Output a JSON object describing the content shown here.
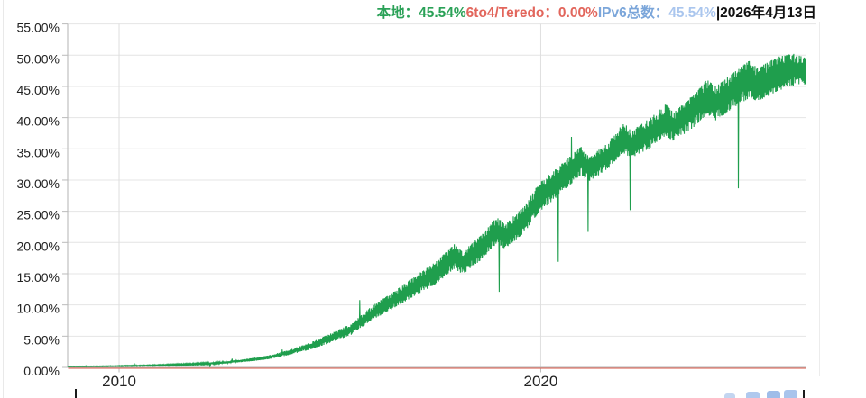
{
  "page": {
    "background": "#ffffff"
  },
  "legend": {
    "items": [
      {
        "label": "本地：",
        "value": "45.54%",
        "label_color": "#2aa157",
        "value_color": "#2aa157"
      },
      {
        "label": "6to4/Teredo：",
        "value": "0.00%",
        "label_color": "#e2665c",
        "value_color": "#e2665c"
      },
      {
        "label": "IPv6总数：",
        "value": "45.54%",
        "label_color": "#7ba6da",
        "value_color": "#aac6ee"
      }
    ],
    "date": "|2026年4月13日",
    "date_color": "#111111"
  },
  "chart_data": {
    "type": "area",
    "description": "IPv6 adoption percentage over time; green band = native IPv6 with weekly oscillation, red flat line = 6to4/Teredo at 0%",
    "grid": true,
    "legend_position": "top-right",
    "x_axis": {
      "range": [
        2008.78,
        2026.28
      ],
      "ticks": [
        2010,
        2020
      ],
      "labels": [
        "2010",
        "2020"
      ]
    },
    "y_axis": {
      "min": 0,
      "max": 55,
      "step": 5,
      "unit": "%",
      "tick_labels": [
        "0.00%",
        "5.00%",
        "10.00%",
        "15.00%",
        "20.00%",
        "25.00%",
        "30.00%",
        "35.00%",
        "40.00%",
        "45.00%",
        "50.00%",
        "55.00%"
      ]
    },
    "series": [
      {
        "name": "本地",
        "color": "#1f9e4d",
        "kind": "weekly-band",
        "envelope_points": [
          [
            2008.78,
            0.1,
            0.18
          ],
          [
            2009.5,
            0.13,
            0.22
          ],
          [
            2010.0,
            0.16,
            0.28
          ],
          [
            2010.5,
            0.2,
            0.34
          ],
          [
            2011.0,
            0.26,
            0.44
          ],
          [
            2011.5,
            0.34,
            0.56
          ],
          [
            2012.0,
            0.46,
            0.72
          ],
          [
            2012.5,
            0.62,
            0.95
          ],
          [
            2013.0,
            0.9,
            1.35
          ],
          [
            2013.5,
            1.25,
            1.85
          ],
          [
            2014.0,
            1.95,
            2.75
          ],
          [
            2014.5,
            2.8,
            3.9
          ],
          [
            2015.0,
            3.9,
            5.4
          ],
          [
            2015.5,
            5.2,
            7.0
          ],
          [
            2016.0,
            7.6,
            9.9
          ],
          [
            2016.5,
            9.4,
            12.1
          ],
          [
            2017.0,
            11.4,
            14.6
          ],
          [
            2017.5,
            13.3,
            16.9
          ],
          [
            2017.95,
            15.8,
            19.8
          ],
          [
            2018.15,
            14.9,
            18.6
          ],
          [
            2018.6,
            17.3,
            21.3
          ],
          [
            2018.95,
            19.8,
            24.1
          ],
          [
            2019.15,
            19.0,
            23.0
          ],
          [
            2019.6,
            21.5,
            25.8
          ],
          [
            2019.95,
            24.8,
            29.5
          ],
          [
            2020.3,
            26.8,
            31.5
          ],
          [
            2020.95,
            30.8,
            35.4
          ],
          [
            2021.15,
            29.7,
            33.6
          ],
          [
            2021.6,
            31.8,
            36.2
          ],
          [
            2021.95,
            34.4,
            39.2
          ],
          [
            2022.15,
            33.5,
            37.9
          ],
          [
            2022.6,
            35.2,
            40.0
          ],
          [
            2022.95,
            37.0,
            42.2
          ],
          [
            2023.15,
            36.2,
            40.9
          ],
          [
            2023.6,
            38.3,
            43.6
          ],
          [
            2023.95,
            40.5,
            46.4
          ],
          [
            2024.15,
            39.5,
            45.0
          ],
          [
            2024.6,
            41.6,
            47.4
          ],
          [
            2024.95,
            43.2,
            49.2
          ],
          [
            2025.15,
            42.6,
            48.0
          ],
          [
            2025.6,
            44.2,
            49.7
          ],
          [
            2025.95,
            45.0,
            50.3
          ],
          [
            2026.28,
            45.3,
            49.6
          ]
        ]
      },
      {
        "name": "6to4/Teredo",
        "color": "#dc685a",
        "kind": "constant",
        "value": 0.0
      }
    ],
    "current": {
      "native_percent": 45.54,
      "tunnel_percent": 0.0,
      "total_percent": 45.54,
      "date": "2026年4月13日"
    }
  }
}
